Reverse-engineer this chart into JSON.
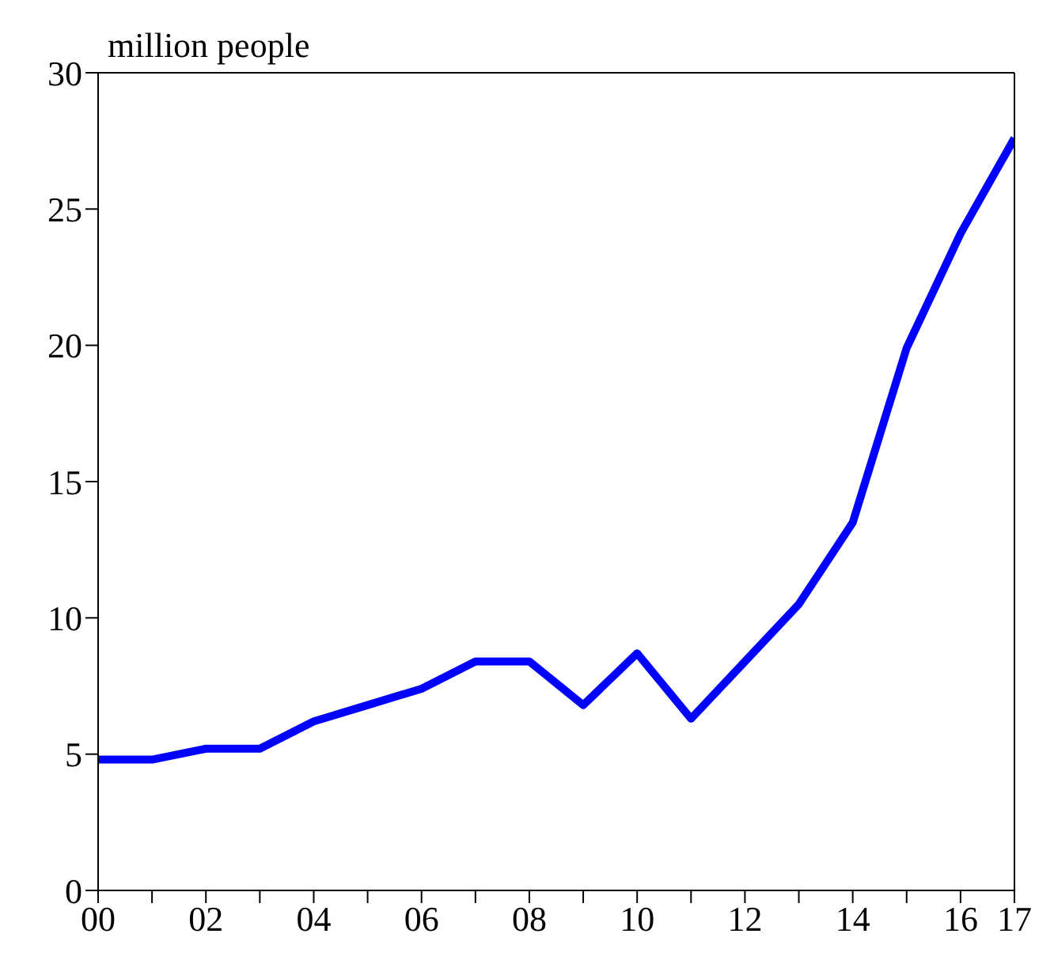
{
  "chart_data": {
    "type": "line",
    "ylabel": "million people",
    "categories": [
      "00",
      null,
      "02",
      null,
      "04",
      null,
      "06",
      null,
      "08",
      null,
      "10",
      null,
      "12",
      null,
      "14",
      null,
      "16",
      "17"
    ],
    "series": [
      {
        "color": "#0000ff",
        "values": [
          4.8,
          4.8,
          5.2,
          5.2,
          6.2,
          6.8,
          7.4,
          8.4,
          8.4,
          6.8,
          8.7,
          6.3,
          8.4,
          10.5,
          13.5,
          19.9,
          24.1,
          27.6
        ]
      }
    ],
    "ylim": [
      0,
      30
    ],
    "yticks": [
      0,
      5,
      10,
      15,
      20,
      25,
      30
    ],
    "grid": false,
    "legend": false,
    "marker": "none",
    "line_style": "solid"
  }
}
